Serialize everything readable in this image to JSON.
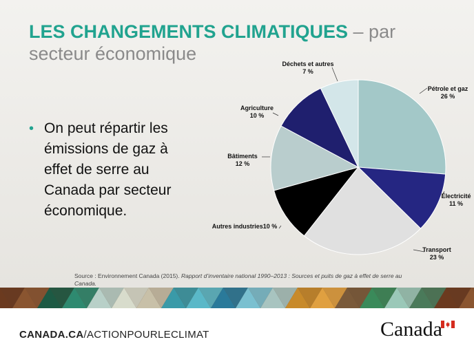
{
  "title": {
    "main": "LES CHANGEMENTS CLIMATIQUES",
    "separator": " – ",
    "sub_part1": "par",
    "sub_part2": "secteur économique"
  },
  "bullet": {
    "text": "On peut répartir les émissions de gaz à effet de serre au Canada par secteur économique."
  },
  "source": {
    "prefix": "Source : Environnement Canada (2015).",
    "italic": "Rapport d’inventaire national 1990–2013 : Sources et puits de gaz à effet de serre au Canada."
  },
  "footer": {
    "url_bold": "CANADA.CA",
    "url_rest": "/ACTIONPOURLECLIMAT",
    "wordmark": "Canada"
  },
  "colors": {
    "title_teal": "#21a38f",
    "subtitle_gray": "#8a8a8a"
  },
  "chart_data": {
    "type": "pie",
    "title": "",
    "slices": [
      {
        "label": "Pétrole et gaz",
        "value_label": "26 %",
        "value": 26,
        "color": "#a3c8c8"
      },
      {
        "label": "Électricité",
        "value_label": "11 %",
        "value": 11,
        "color": "#252682"
      },
      {
        "label": "Transport",
        "value_label": "23 %",
        "value": 23,
        "color": "#e0e0e0"
      },
      {
        "label": "Autres industries",
        "value_label": "10 %",
        "value": 10,
        "color": "#000000"
      },
      {
        "label": "Bâtiments",
        "value_label": "12 %",
        "value": 12,
        "color": "#b9cdcd"
      },
      {
        "label": "Agriculture",
        "value_label": "10 %",
        "value": 10,
        "color": "#1f1f6e"
      },
      {
        "label": "Déchets et autres",
        "value_label": "7 %",
        "value": 7,
        "color": "#d3e6e9"
      }
    ]
  }
}
